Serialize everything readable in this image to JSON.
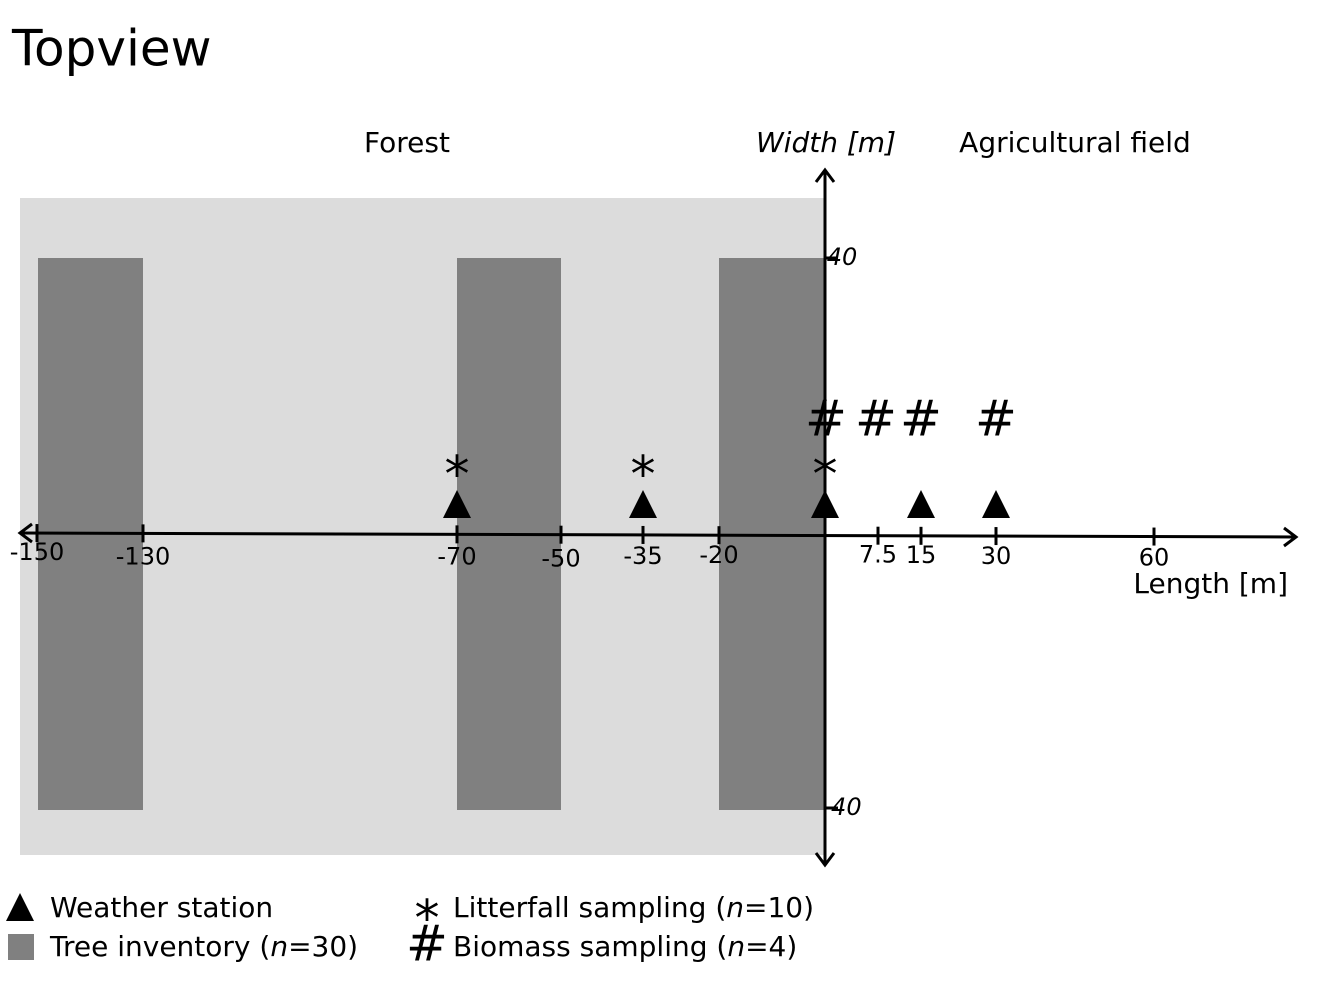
{
  "title": "Topview",
  "regions": {
    "forest": "Forest",
    "field": "Agricultural field"
  },
  "axes": {
    "y_label": "Width [m]",
    "x_label": "Length [m]",
    "x_ticks": [
      "-150",
      "-130",
      "-70",
      "-50",
      "-35",
      "-20",
      "7.5",
      "15",
      "30",
      "60"
    ],
    "y_ticks": [
      "40",
      "-40"
    ]
  },
  "symbols": {
    "litterfall": "*",
    "biomass": "#"
  },
  "legend": [
    {
      "parts": [
        "Weather station"
      ]
    },
    {
      "parts": [
        "Tree inventory (",
        "n",
        "=30)"
      ]
    },
    {
      "parts": [
        "Litterfall sampling (",
        "n",
        "=10)"
      ]
    },
    {
      "parts": [
        "Biomass sampling (",
        "n",
        "=4)"
      ]
    }
  ]
}
